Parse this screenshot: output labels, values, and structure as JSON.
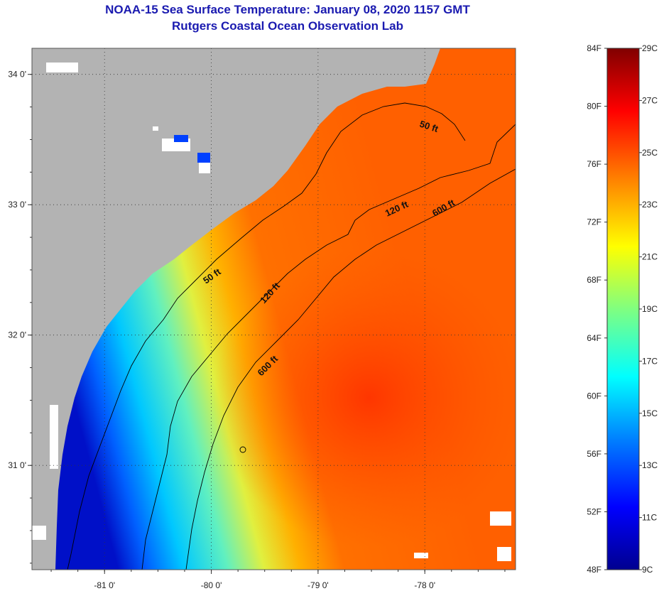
{
  "title": {
    "line1": "NOAA-15 Sea Surface Temperature:  January 08, 2020 1157 GMT",
    "line2": "Rutgers Coastal Ocean Observation Lab"
  },
  "axes": {
    "longitude_ticks": [
      {
        "value": -81,
        "label": "-81 0'"
      },
      {
        "value": -80,
        "label": "-80 0'"
      },
      {
        "value": -79,
        "label": "-79 0'"
      },
      {
        "value": -78,
        "label": "-78 0'"
      }
    ],
    "latitude_ticks": [
      {
        "value": 34,
        "label": "34 0'"
      },
      {
        "value": 33,
        "label": "33 0'"
      },
      {
        "value": 32,
        "label": "32 0'"
      },
      {
        "value": 31,
        "label": "31 0'"
      }
    ],
    "lon_range": [
      -81.68,
      -77.15
    ],
    "lat_range": [
      30.2,
      34.2
    ]
  },
  "contours": [
    {
      "name": "50 ft",
      "label": "50 ft"
    },
    {
      "name": "120 ft",
      "label": "120 ft"
    },
    {
      "name": "600 ft",
      "label": "600 ft"
    }
  ],
  "colorbar": {
    "fahrenheit": [
      "84F",
      "80F",
      "76F",
      "72F",
      "68F",
      "64F",
      "60F",
      "56F",
      "52F",
      "48F"
    ],
    "celsius": [
      "29C",
      "27C",
      "25C",
      "23C",
      "21C",
      "19C",
      "17C",
      "15C",
      "13C",
      "11C",
      "9C"
    ],
    "range_f": [
      48,
      84
    ],
    "range_c": [
      9,
      29
    ],
    "colors": [
      "#00008f",
      "#0000ff",
      "#0080ff",
      "#00ffff",
      "#80ff80",
      "#ffff00",
      "#ff8000",
      "#ff0000",
      "#800000"
    ]
  },
  "colors": {
    "land": "#b3b3b3",
    "title": "#1a1ab0"
  }
}
